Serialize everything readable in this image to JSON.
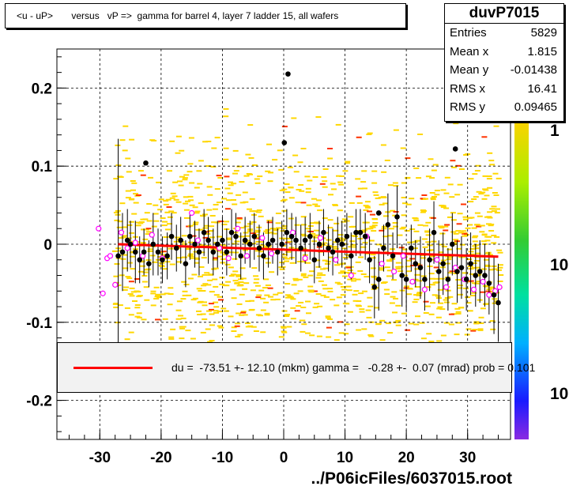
{
  "title": "<u - uP>       versus   vP =>  gamma for barrel 4, layer 7 ladder 15, all wafers",
  "stats": {
    "name": "duvP7015",
    "rows": [
      {
        "label": "Entries",
        "value": "5829"
      },
      {
        "label": "Mean x",
        "value": "1.815"
      },
      {
        "label": "Mean y",
        "value": "-0.01438"
      },
      {
        "label": "RMS x",
        "value": "16.41"
      },
      {
        "label": "RMS y",
        "value": "0.09465"
      }
    ]
  },
  "fit_text": "du =  -73.51 +- 12.10 (mkm) gamma =   -0.28 +-  0.07 (mrad) prob = 0.101",
  "file_label": "../P06icFiles/6037015.root",
  "colors": {
    "fit_line": "#ff0000",
    "hist_bins": "#ffd700",
    "profile_markers": "#000000",
    "open_markers": "#ff00ff"
  },
  "chart_data": {
    "type": "scatter",
    "xlim": [
      -37,
      37
    ],
    "ylim": [
      -0.25,
      0.25
    ],
    "x_ticks": [
      "-30",
      "-20",
      "-10",
      "0",
      "10",
      "20",
      "30"
    ],
    "x_tick_values": [
      -30,
      -20,
      -10,
      0,
      10,
      20,
      30
    ],
    "y_ticks": [
      "0.2",
      "0.1",
      "0",
      "-0.1",
      "-0.2"
    ],
    "y_tick_values": [
      0.2,
      0.1,
      0,
      -0.1,
      -0.2
    ],
    "grid": true,
    "colorbar_labels": [
      "1",
      "10",
      "10"
    ],
    "fit_line": {
      "x": [
        -27,
        35
      ],
      "y": [
        0.0,
        -0.016
      ]
    },
    "profile_points": {
      "x": [
        -27,
        -26.3,
        -25.5,
        -25,
        -24.2,
        -23.5,
        -22.8,
        -22,
        -21.3,
        -20.5,
        -19.8,
        -19,
        -18.3,
        -17.5,
        -16.8,
        -16,
        -15.3,
        -14.5,
        -13.8,
        -13,
        -12.3,
        -11.5,
        -10.8,
        -10,
        -9.3,
        -8.5,
        -7.8,
        -7,
        -6.3,
        -5.5,
        -4.8,
        -4,
        -3.3,
        -2.5,
        -1.8,
        -1,
        -0.3,
        0.5,
        1.3,
        2,
        2.8,
        3.5,
        4.3,
        5,
        5.8,
        6.5,
        7.3,
        8,
        8.8,
        9.5,
        10.3,
        11,
        11.8,
        12.5,
        13.3,
        14,
        14.8,
        15.5,
        16.3,
        17,
        17.8,
        18.5,
        19.3,
        20,
        20.8,
        21.5,
        22.3,
        23,
        23.8,
        24.5,
        25.3,
        26,
        26.8,
        27.5,
        28.3,
        29,
        29.8,
        30.5,
        31.3,
        32,
        32.8,
        33.5,
        34.3,
        35
      ],
      "y": [
        -0.015,
        -0.01,
        0.005,
        0.0,
        -0.01,
        -0.02,
        -0.01,
        -0.025,
        0.0,
        -0.01,
        -0.02,
        -0.015,
        0.01,
        -0.005,
        0.005,
        -0.025,
        0.01,
        0.0,
        -0.01,
        0.015,
        0.005,
        -0.01,
        0.0,
        0.005,
        -0.01,
        0.015,
        0.01,
        -0.015,
        0.005,
        0.0,
        0.01,
        -0.005,
        -0.015,
        0.0,
        0.005,
        -0.01,
        0.0,
        0.015,
        0.01,
        0.005,
        -0.005,
        0.005,
        0.01,
        -0.02,
        0.0,
        0.015,
        -0.005,
        -0.01,
        0.005,
        0.0,
        0.01,
        -0.015,
        0.015,
        0.015,
        0.01,
        -0.02,
        -0.055,
        -0.045,
        -0.005,
        0.025,
        -0.015,
        0.035,
        -0.04,
        -0.045,
        -0.005,
        -0.025,
        -0.03,
        -0.045,
        -0.02,
        0.015,
        -0.035,
        -0.025,
        -0.045,
        0.0,
        -0.035,
        -0.03,
        -0.045,
        -0.025,
        -0.04,
        -0.035,
        -0.04,
        -0.05,
        -0.065,
        -0.075
      ],
      "err": [
        0.15,
        0.05,
        0.04,
        0.03,
        0.04,
        0.03,
        0.03,
        0.03,
        0.04,
        0.03,
        0.03,
        0.03,
        0.03,
        0.03,
        0.03,
        0.03,
        0.03,
        0.03,
        0.03,
        0.03,
        0.03,
        0.03,
        0.03,
        0.03,
        0.03,
        0.03,
        0.03,
        0.03,
        0.03,
        0.03,
        0.03,
        0.03,
        0.03,
        0.03,
        0.03,
        0.03,
        0.03,
        0.03,
        0.03,
        0.03,
        0.03,
        0.03,
        0.03,
        0.03,
        0.03,
        0.03,
        0.03,
        0.03,
        0.03,
        0.03,
        0.03,
        0.03,
        0.03,
        0.03,
        0.03,
        0.03,
        0.04,
        0.04,
        0.03,
        0.04,
        0.03,
        0.04,
        0.04,
        0.04,
        0.03,
        0.03,
        0.04,
        0.04,
        0.04,
        0.04,
        0.04,
        0.04,
        0.04,
        0.04,
        0.04,
        0.04,
        0.04,
        0.04,
        0.04,
        0.04,
        0.04,
        0.04,
        0.05,
        0.05
      ]
    },
    "outlier_points": {
      "x": [
        -22.5,
        0.7,
        0.1,
        15.5,
        28
      ],
      "y": [
        0.104,
        0.218,
        0.13,
        0.04,
        0.122
      ]
    },
    "open_points": {
      "x": [
        -30.2,
        -29.5,
        -28.8,
        -28.3,
        -27.5,
        -26.5,
        -25.5,
        -24.2,
        -23,
        -21.5,
        -19.8,
        -15,
        -14,
        -10.5,
        -9,
        -7.5,
        -6,
        -3.5,
        -2,
        1.5,
        3.5,
        6,
        8.5,
        11,
        13.5,
        16,
        18,
        19.5,
        21,
        23,
        25,
        26.5,
        28,
        29.5,
        31,
        32.5,
        33.5,
        34.5,
        35.2
      ],
      "y": [
        0.02,
        -0.063,
        -0.018,
        -0.015,
        -0.052,
        0.015,
        -0.005,
        0.002,
        -0.015,
        0.012,
        -0.018,
        0.04,
        0.005,
        -0.005,
        -0.018,
        0.02,
        -0.015,
        0.008,
        -0.012,
        0.015,
        -0.018,
        0.008,
        -0.02,
        -0.04,
        0.01,
        -0.025,
        -0.035,
        -0.015,
        -0.048,
        -0.058,
        -0.02,
        -0.055,
        -0.03,
        -0.045,
        -0.058,
        -0.048,
        -0.065,
        -0.06,
        -0.055
      ]
    }
  }
}
